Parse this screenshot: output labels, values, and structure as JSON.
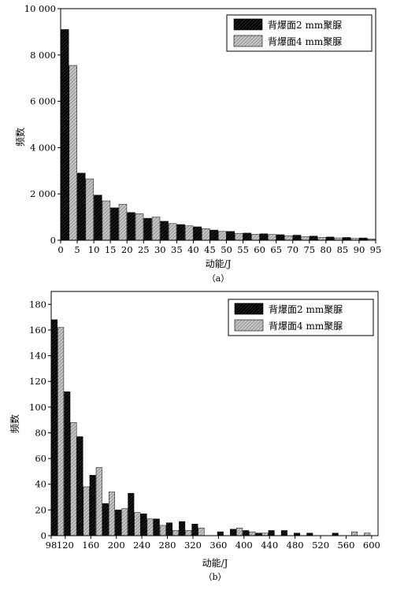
{
  "chart_data": [
    {
      "type": "bar",
      "panel_label": "（a）",
      "xlabel": "动能/J",
      "ylabel": "频数",
      "xlim": [
        0,
        95
      ],
      "ylim": [
        0,
        10000
      ],
      "bin_width": 5,
      "x_ticks": [
        "0",
        "5",
        "10",
        "15",
        "20",
        "25",
        "30",
        "35",
        "40",
        "45",
        "50",
        "55",
        "60",
        "65",
        "70",
        "75",
        "80",
        "85",
        "90",
        "95"
      ],
      "y_ticks": [
        "0",
        "2 000",
        "4 000",
        "6 000",
        "8 000",
        "10 000"
      ],
      "y_tick_values": [
        0,
        2000,
        4000,
        6000,
        8000,
        10000
      ],
      "legend": {
        "position": "top-right",
        "entries": [
          "背爆面2 mm聚脲",
          "背爆面4 mm聚脲"
        ]
      },
      "series": [
        {
          "name": "背爆面2 mm聚脲",
          "color": "#000000",
          "pattern": "dark-hatch",
          "values": [
            9100,
            2900,
            1950,
            1400,
            1200,
            950,
            820,
            680,
            580,
            440,
            380,
            310,
            280,
            240,
            220,
            180,
            140,
            120,
            100
          ]
        },
        {
          "name": "背爆面4 mm聚脲",
          "color": "#a0a0a0",
          "pattern": "grey-hatch",
          "values": [
            7550,
            2650,
            1700,
            1550,
            1150,
            1000,
            720,
            620,
            500,
            380,
            300,
            260,
            250,
            190,
            150,
            120,
            100,
            80,
            60
          ]
        }
      ],
      "grid": false
    },
    {
      "type": "bar",
      "panel_label": "（b）",
      "xlabel": "动能/J",
      "ylabel": "频数",
      "xlim": [
        98,
        610
      ],
      "ylim": [
        0,
        190
      ],
      "bin_width": 20,
      "x_ticks": [
        "98",
        "120",
        "160",
        "200",
        "240",
        "280",
        "320",
        "360",
        "400",
        "440",
        "480",
        "520",
        "560",
        "600"
      ],
      "x_tick_values": [
        98,
        120,
        160,
        200,
        240,
        280,
        320,
        360,
        400,
        440,
        480,
        520,
        560,
        600
      ],
      "y_ticks": [
        "0",
        "20",
        "40",
        "60",
        "80",
        "100",
        "120",
        "140",
        "160",
        "180"
      ],
      "y_tick_values": [
        0,
        20,
        40,
        60,
        80,
        100,
        120,
        140,
        160,
        180
      ],
      "legend": {
        "position": "top-right",
        "entries": [
          "背爆面2 mm聚脲",
          "背爆面4 mm聚脲"
        ]
      },
      "bin_starts": [
        98,
        118,
        138,
        158,
        178,
        198,
        218,
        238,
        258,
        278,
        298,
        318,
        338,
        358,
        378,
        398,
        418,
        438,
        458,
        478,
        498,
        518,
        538,
        558,
        578
      ],
      "series": [
        {
          "name": "背爆面2 mm聚脲",
          "color": "#000000",
          "pattern": "dark-hatch",
          "values": [
            168,
            112,
            77,
            47,
            25,
            20,
            33,
            17,
            13,
            10,
            11,
            9,
            0,
            3,
            5,
            4,
            2,
            4,
            4,
            2,
            2,
            0,
            2,
            0,
            0
          ]
        },
        {
          "name": "背爆面4 mm聚脲",
          "color": "#a0a0a0",
          "pattern": "grey-hatch",
          "values": [
            162,
            88,
            38,
            53,
            34,
            21,
            18,
            13,
            8,
            4,
            4,
            6,
            0,
            0,
            6,
            3,
            2,
            0,
            0,
            0,
            0,
            0,
            0,
            3,
            2
          ]
        }
      ],
      "grid": false
    }
  ]
}
